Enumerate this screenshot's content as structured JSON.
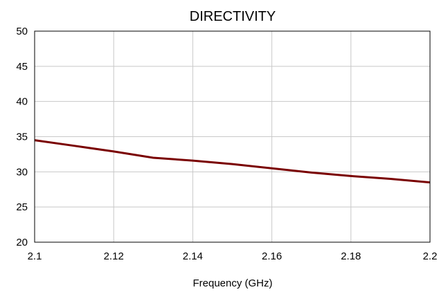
{
  "chart_data": {
    "type": "line",
    "title": "DIRECTIVITY",
    "xlabel": "Frequency (GHz)",
    "ylabel": "",
    "xlim": [
      2.1,
      2.2
    ],
    "ylim": [
      20,
      50
    ],
    "x_ticks": [
      "2.1",
      "2.12",
      "2.14",
      "2.16",
      "2.18",
      "2.2"
    ],
    "y_ticks": [
      "20",
      "25",
      "30",
      "35",
      "40",
      "45",
      "50"
    ],
    "grid": true,
    "series": [
      {
        "color": "#7a0000",
        "x": [
          2.1,
          2.11,
          2.12,
          2.13,
          2.14,
          2.15,
          2.16,
          2.17,
          2.18,
          2.19,
          2.2
        ],
        "values": [
          34.5,
          33.7,
          32.9,
          32.0,
          31.6,
          31.1,
          30.5,
          29.9,
          29.4,
          29.0,
          28.5
        ]
      }
    ]
  }
}
